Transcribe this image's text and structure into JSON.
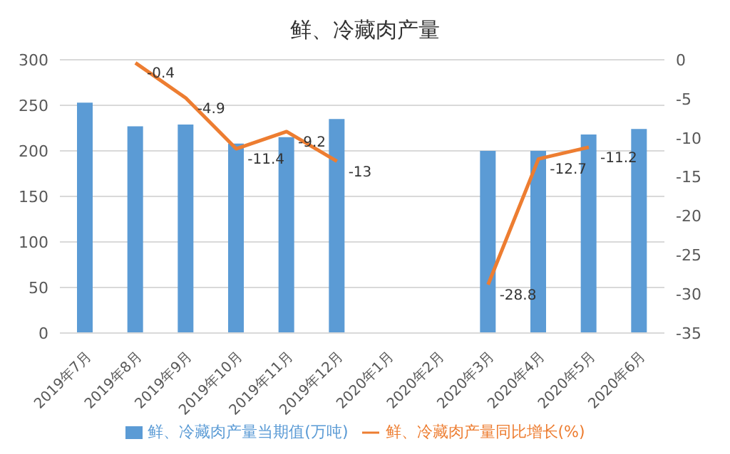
{
  "chart_data": {
    "type": "bar",
    "title": "鲜、冷藏肉产量",
    "categories": [
      "2019年7月",
      "2019年8月",
      "2019年9月",
      "2019年10月",
      "2019年11月",
      "2019年12月",
      "2020年1月",
      "2020年2月",
      "2020年3月",
      "2020年4月",
      "2020年5月",
      "2020年6月"
    ],
    "series": [
      {
        "name": "鲜、冷藏肉产量当期值(万吨)",
        "color": "#5b9bd5",
        "values": [
          253,
          227,
          229,
          208,
          215,
          235,
          null,
          null,
          200,
          200,
          218,
          224
        ]
      },
      {
        "name": "鲜、冷藏肉产量同比增长(%)",
        "type": "line",
        "axis": "y2",
        "color": "#ed7d31",
        "marker": "none",
        "values": [
          null,
          -0.4,
          -4.9,
          -11.4,
          -9.2,
          -13,
          null,
          null,
          -28.8,
          -12.7,
          -11.2,
          null
        ],
        "value_labels": [
          null,
          "-0.4",
          "-4.9",
          "-11.4",
          "-9.2",
          "-13",
          null,
          null,
          "-28.8",
          "-12.7",
          "-11.2",
          null
        ]
      }
    ],
    "ylim": [
      0,
      300
    ],
    "yticks": [
      0,
      50,
      100,
      150,
      200,
      250,
      300
    ],
    "y2lim": [
      -35,
      0
    ],
    "y2ticks": [
      -35,
      -30,
      -25,
      -20,
      -15,
      -10,
      -5,
      0
    ],
    "grid": "y",
    "legend": "bottom"
  }
}
